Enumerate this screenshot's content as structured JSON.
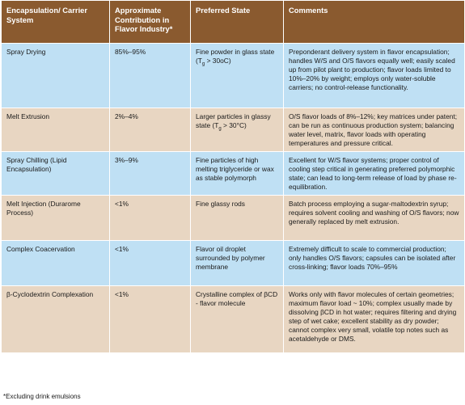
{
  "table": {
    "headers": [
      "Encapsulation/ Carrier System",
      "Approximate Contribution in Flavor Industry*",
      "Preferred State",
      "Comments"
    ],
    "rows": [
      {
        "system": "Spray Drying",
        "contribution": "85%–95%",
        "state_before": "Fine powder in glass state (T",
        "state_sub": "g",
        "state_after": " > 30oC)",
        "comments": "Preponderant delivery system in flavor encapsulation; handles W/S and O/S flavors equally well; easily scaled up from pilot plant to production; flavor loads limited to 10%–20% by weight; employs only water-soluble carriers; no control-release functionality."
      },
      {
        "system": "Melt Extrusion",
        "contribution": "2%–4%",
        "state_before": "Larger particles in glassy state (T",
        "state_sub": "g",
        "state_after": " > 30°C)",
        "comments": "O/S flavor loads of 8%–12%; key matrices under patent; can be run as continuous production system; balancing water level, matrix, flavor loads with operating temperatures and pressure critical."
      },
      {
        "system": "Spray Chilling (Lipid Encapsulation)",
        "contribution": "3%–9%",
        "state": "Fine particles of high melting triglyceride or wax as stable polymorph",
        "comments": "Excellent for W/S flavor systems; proper control of cooling step critical in generating preferred polymorphic state; can lead to long-term release of load by phase re-equilibration."
      },
      {
        "system": "Melt Injection (Durarome Process)",
        "contribution": "<1%",
        "state": "Fine glassy rods",
        "comments": "Batch process employing a sugar-maltodextrin syrup; requires solvent cooling and washing of O/S flavors; now generally replaced by melt extrusion."
      },
      {
        "system": "Complex Coacervation",
        "contribution": "<1%",
        "state": "Flavor oil droplet surrounded by polymer membrane",
        "comments": "Extremely difficult to scale to commercial production; only handles O/S flavors; capsules can be isolated after cross-linking; flavor loads 70%–95%"
      },
      {
        "system": "β-Cyclodextrin Complexation",
        "contribution": "<1%",
        "state": "Crystalline complex of βCD - flavor molecule",
        "comments": "Works only with flavor molecules of certain geometries; maximum flavor load ~ 10%; complex usually made by dissolving βCD in hot water; requires filtering and drying step of wet cake; excellent stability as dry powder; cannot complex very small, volatile top notes such as acetaldehyde or DMS."
      }
    ]
  },
  "footnote": "*Excluding drink emulsions",
  "colors": {
    "header_bg": "#8a5a2f",
    "row_blue": "#bfe0f4",
    "row_tan": "#e8d6c2"
  }
}
